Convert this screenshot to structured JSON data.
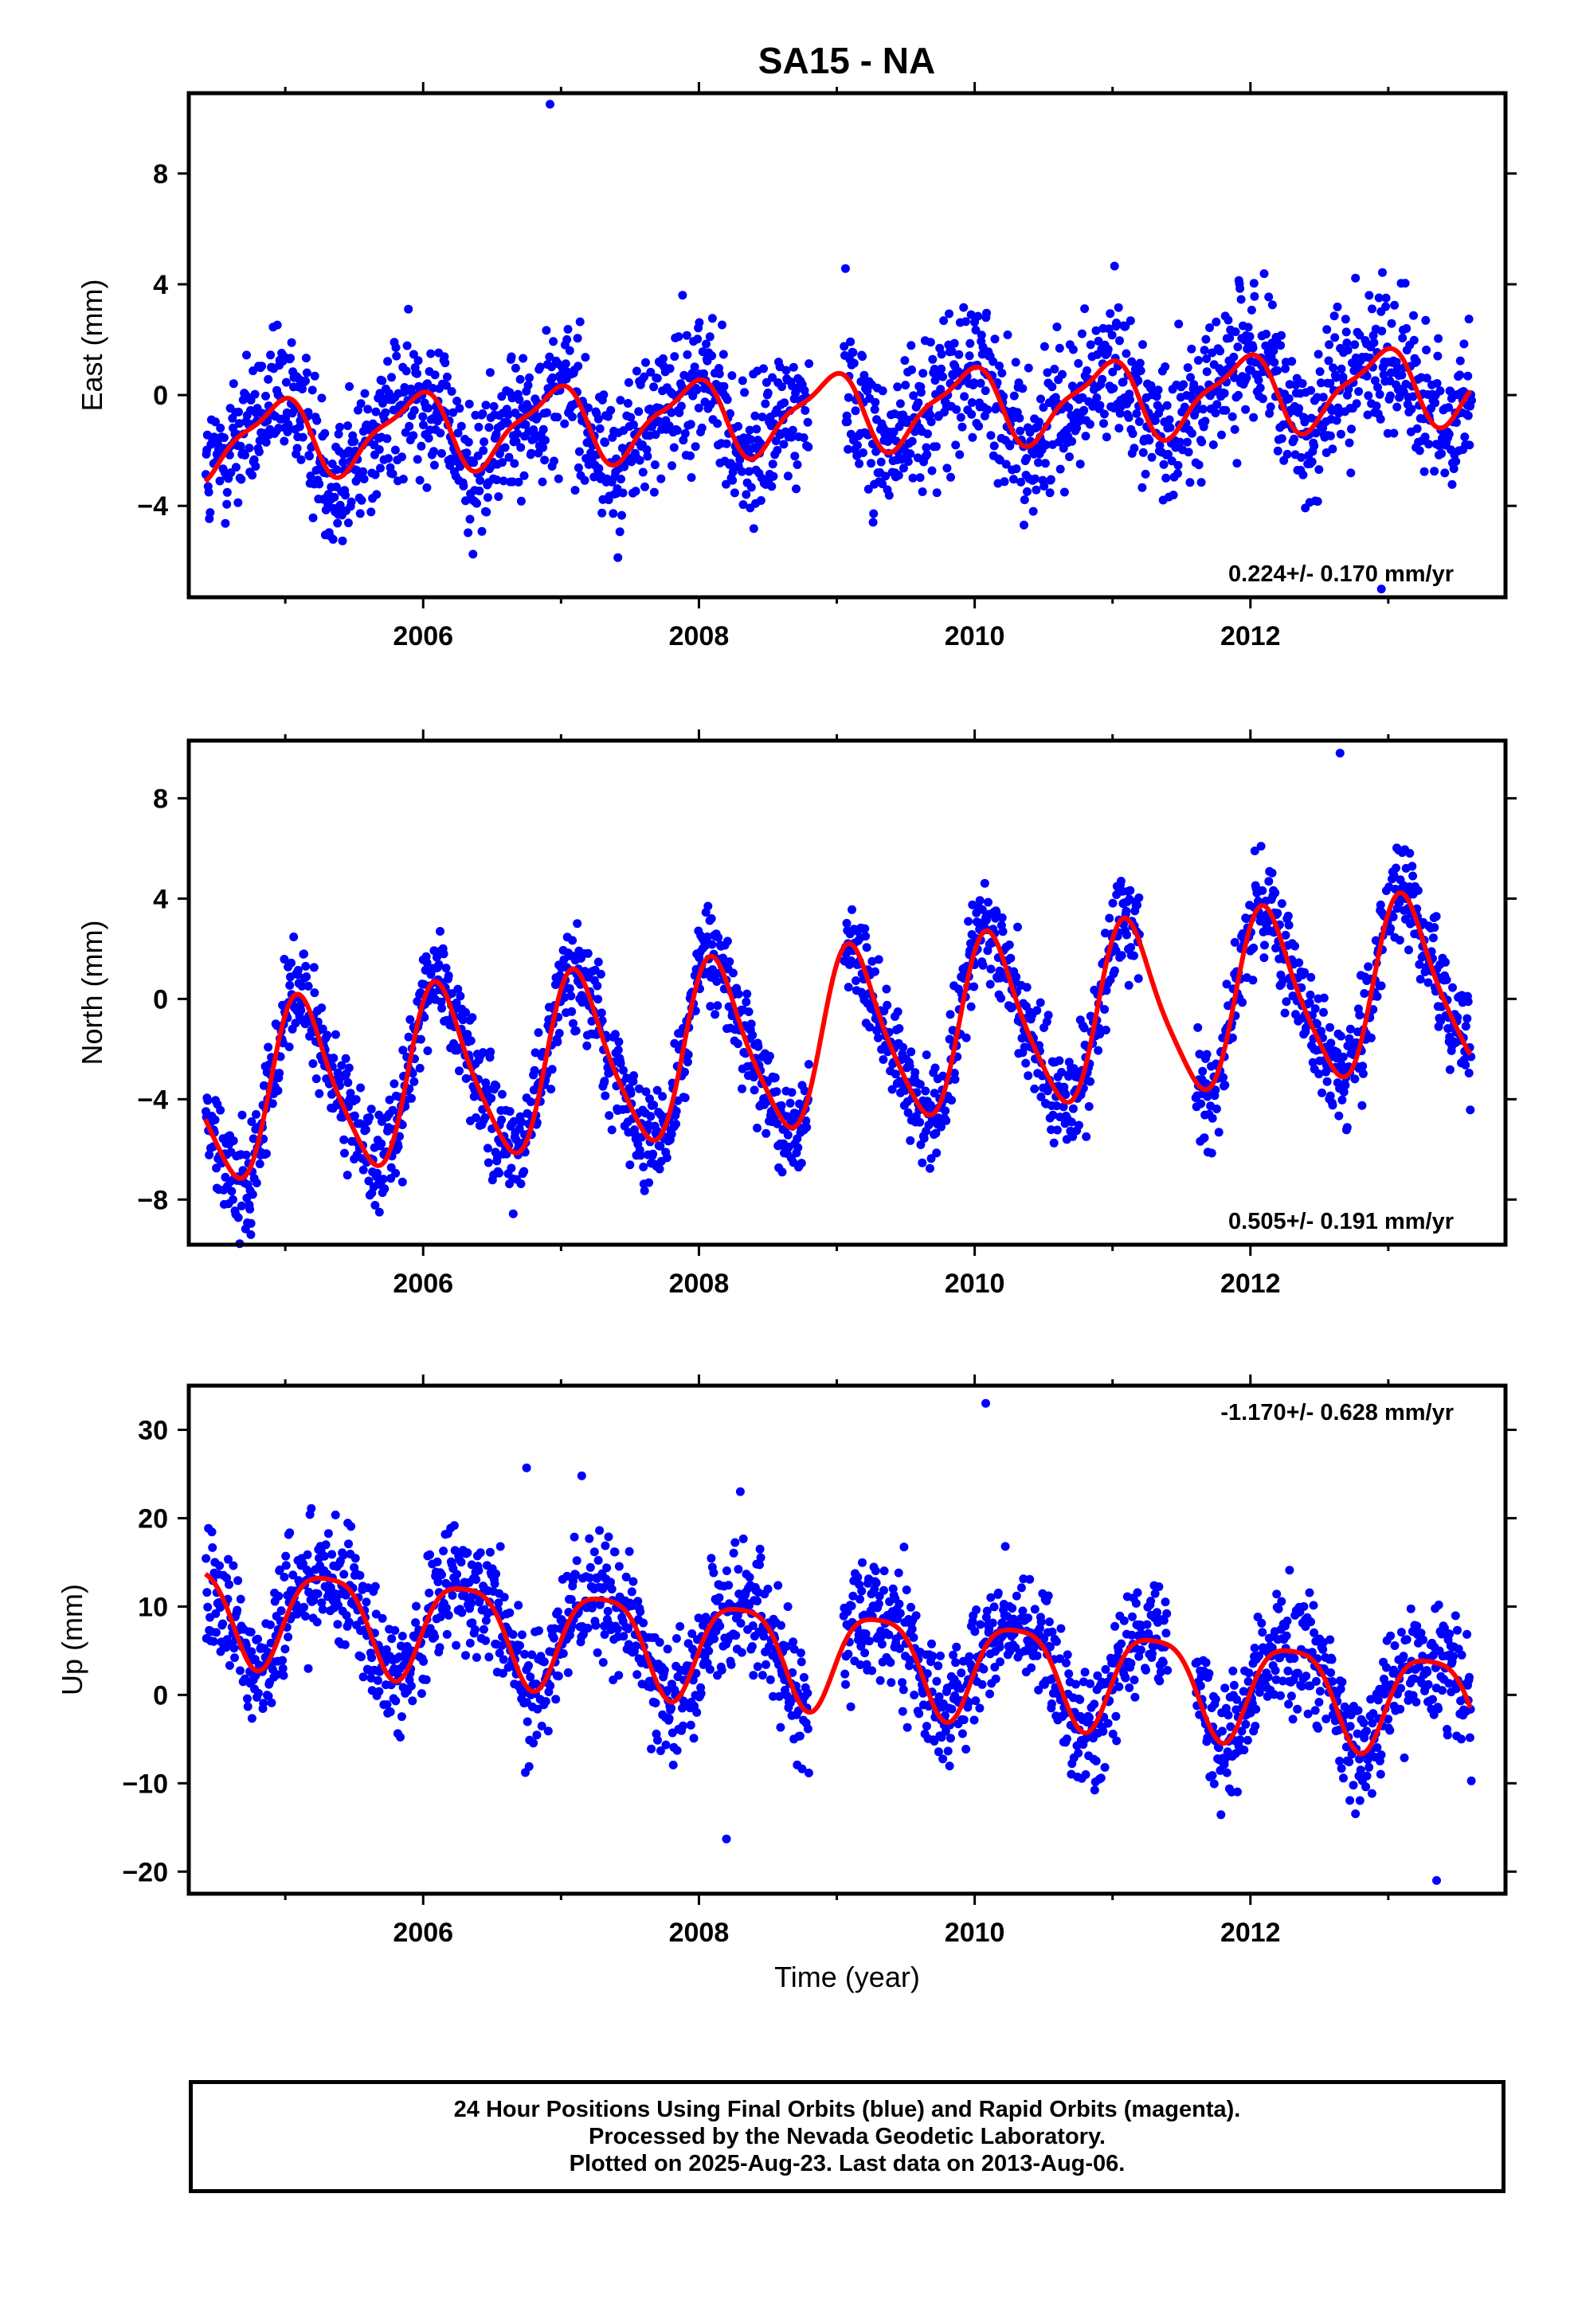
{
  "title": "SA15 - NA",
  "footer": {
    "lines": [
      "24 Hour Positions Using Final Orbits (blue) and Rapid Orbits (magenta).",
      "Processed by the Nevada Geodetic Laboratory.",
      "Plotted on 2025-Aug-23. Last data on 2013-Aug-06."
    ]
  },
  "colors": {
    "points": "#0000ff",
    "model": "#ff0000",
    "frame": "#000000"
  },
  "chart_data": [
    {
      "type": "scatter",
      "ylabel": "East (mm)",
      "xlabel": "",
      "xlim": [
        2004.3,
        2013.85
      ],
      "ylim": [
        -7.3,
        10.9
      ],
      "xticks": [
        2006,
        2008,
        2010,
        2012
      ],
      "yticks": [
        -4,
        0,
        4,
        8
      ],
      "rate_text": "0.224+/- 0.170 mm/yr",
      "rate_position": "bottom-right",
      "model": {
        "rate": 0.224,
        "offset": -0.6,
        "annual_amp": 1.3,
        "annual_phase": 2.0,
        "semi_amp": 0.4,
        "semi_phase": 0.5
      },
      "scatter_sd": 1.3,
      "outliers": [
        [
          2006.92,
          10.5
        ],
        [
          2012.95,
          -7.0
        ]
      ],
      "gaps": [
        [
          2008.8,
          2009.05
        ]
      ],
      "series": [
        {
          "values": "daily positions (final orbits)"
        },
        {
          "values": "seasonal + linear model fit"
        }
      ]
    },
    {
      "type": "scatter",
      "ylabel": "North (mm)",
      "xlabel": "",
      "xlim": [
        2004.3,
        2013.85
      ],
      "ylim": [
        -9.8,
        10.3
      ],
      "xticks": [
        2006,
        2008,
        2010,
        2012
      ],
      "yticks": [
        -8,
        -4,
        0,
        4,
        8
      ],
      "rate_text": "0.505+/- 0.191 mm/yr",
      "rate_position": "bottom-right",
      "model": {
        "rate": 0.505,
        "offset": -1.6,
        "annual_amp": 3.4,
        "annual_phase": 0.8,
        "semi_amp": 0.6,
        "semi_phase": 1.2
      },
      "scatter_sd": 1.0,
      "outliers": [
        [
          2012.65,
          9.8
        ],
        [
          2004.75,
          -9.4
        ],
        [
          2005.85,
          -7.3
        ]
      ],
      "gaps": [
        [
          2008.8,
          2009.05
        ],
        [
          2011.2,
          2011.6
        ]
      ],
      "series": [
        {
          "values": "daily positions (final orbits)"
        },
        {
          "values": "seasonal + linear model fit"
        }
      ]
    },
    {
      "type": "scatter",
      "ylabel": "Up (mm)",
      "xlabel": "Time (year)",
      "xlim": [
        2004.3,
        2013.85
      ],
      "ylim": [
        -22.5,
        35
      ],
      "xticks": [
        2006,
        2008,
        2010,
        2012
      ],
      "yticks": [
        -20,
        -10,
        0,
        10,
        20,
        30
      ],
      "rate_text": "-1.170+/- 0.628 mm/yr",
      "rate_position": "top-right",
      "model": {
        "rate": -1.17,
        "offset": 4.5,
        "annual_amp": 5.5,
        "annual_phase": -0.3,
        "semi_amp": 1.2,
        "semi_phase": 0.9
      },
      "scatter_sd": 3.4,
      "outliers": [
        [
          2010.08,
          33.0
        ],
        [
          2006.75,
          25.7
        ],
        [
          2007.15,
          24.8
        ],
        [
          2008.3,
          23.0
        ],
        [
          2008.2,
          -16.3
        ],
        [
          2013.35,
          -21.0
        ]
      ],
      "gaps": [
        [
          2008.8,
          2009.05
        ],
        [
          2011.4,
          2011.6
        ]
      ],
      "series": [
        {
          "values": "daily positions (final orbits)"
        },
        {
          "values": "seasonal + linear model fit"
        }
      ]
    }
  ]
}
